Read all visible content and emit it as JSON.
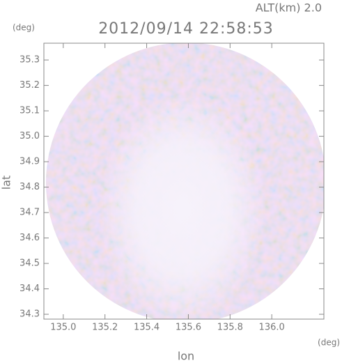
{
  "chart_data": {
    "type": "radar-map",
    "title": "2012/09/14 22:58:53",
    "altitude_label": "ALT(km) 2.0",
    "y_unit": "(deg)",
    "x_unit": "(deg)",
    "xlabel": "lon",
    "ylabel": "lat",
    "xlim": [
      134.907,
      136.25
    ],
    "ylim": [
      34.281,
      35.366
    ],
    "xticks": [
      {
        "value": 135,
        "label": "135.0"
      },
      135.2,
      135.4,
      135.6,
      135.8,
      {
        "value": 136,
        "label": "136.0"
      }
    ],
    "yticks": [
      34.3,
      34.4,
      34.5,
      34.6,
      34.7,
      34.8,
      34.9,
      {
        "value": 35,
        "label": "35.0"
      },
      35.1,
      35.2,
      35.3
    ]
  }
}
